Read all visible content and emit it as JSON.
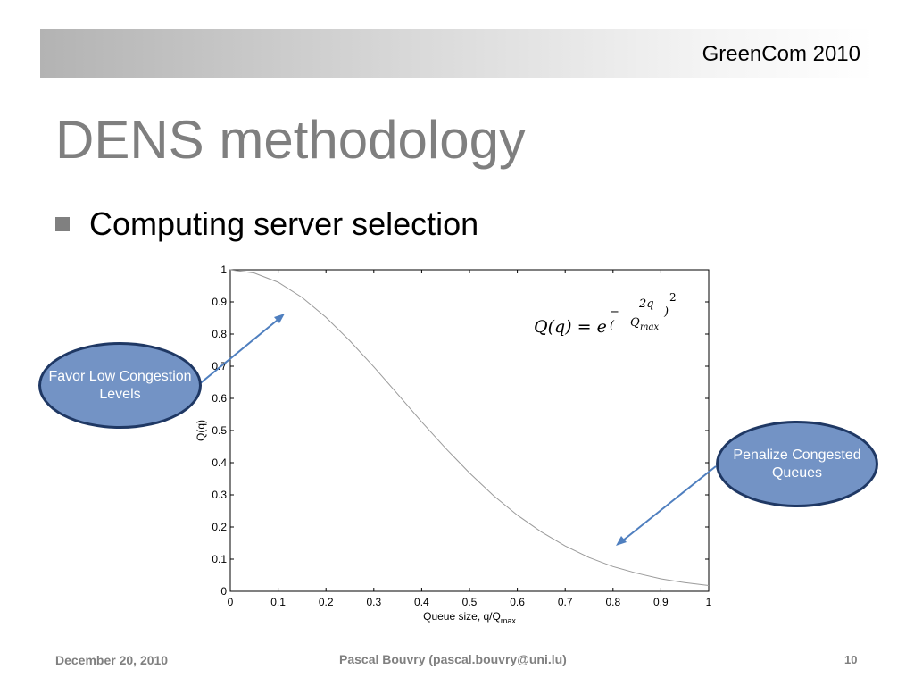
{
  "header": {
    "text": "GreenCom 2010"
  },
  "slide": {
    "title": "DENS methodology",
    "bullet": "Computing server selection"
  },
  "callouts": {
    "left": "Favor Low Congestion Levels",
    "right": "Penalize Congested Queues"
  },
  "formula": {
    "lhs": "Q(q) = e",
    "exp_sign": "−(",
    "exp_num": "2q",
    "exp_den": "Q",
    "exp_den_sub": "max",
    "exp_close": ")",
    "exp_power": "2"
  },
  "footer": {
    "date": "December 20, 2010",
    "author": "Pascal Bouvry (pascal.bouvry@uni.lu)",
    "page": "10"
  },
  "colors": {
    "arrow": "#4f7fbf",
    "callout_fill": "#7393c5",
    "callout_border": "#1f3864",
    "curve": "#9a9a9a"
  },
  "chart_data": {
    "type": "line",
    "xlabel": "Queue size, q/Q",
    "xlabel_sub": "max",
    "ylabel": "Q(q)",
    "xlim": [
      0,
      1
    ],
    "ylim": [
      0,
      1
    ],
    "xticks": [
      "0",
      "0.1",
      "0.2",
      "0.3",
      "0.4",
      "0.5",
      "0.6",
      "0.7",
      "0.8",
      "0.9",
      "1"
    ],
    "yticks": [
      "0",
      "0.1",
      "0.2",
      "0.3",
      "0.4",
      "0.5",
      "0.6",
      "0.7",
      "0.8",
      "0.9",
      "1"
    ],
    "grid": false,
    "series": [
      {
        "x": [
          0,
          0.05,
          0.1,
          0.15,
          0.2,
          0.25,
          0.3,
          0.35,
          0.4,
          0.45,
          0.5,
          0.55,
          0.6,
          0.65,
          0.7,
          0.75,
          0.8,
          0.85,
          0.9,
          0.95,
          1
        ],
        "values": [
          1,
          0.99,
          0.961,
          0.914,
          0.852,
          0.779,
          0.698,
          0.613,
          0.527,
          0.445,
          0.368,
          0.298,
          0.237,
          0.185,
          0.141,
          0.105,
          0.077,
          0.056,
          0.039,
          0.027,
          0.018
        ]
      }
    ]
  }
}
